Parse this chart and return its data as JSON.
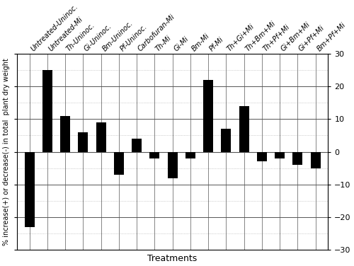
{
  "categories": [
    "Untreated-Uninoc.",
    "Untreated-Mi",
    "Th-Uninoc.",
    "Gi-Uninoc.",
    "Bm-Uninoc.",
    "Pf-Uninoc.",
    "Carbofuran-Mi",
    "Th-Mi",
    "Gi-Mi",
    "Bm-Mi",
    "Pf-Mi",
    "Th+Gi+Mi",
    "Th+Bm+Mi",
    "Th+Pf+Mi",
    "Gi+Bm+Mi",
    "Gi+Pf+Mi",
    "Bm+Pf+Mi"
  ],
  "values": [
    -23,
    25,
    11,
    6,
    9,
    -7,
    4,
    -2,
    -8,
    -2,
    22,
    7,
    14,
    -3,
    -2,
    -4,
    -5
  ],
  "bar_color": "#000000",
  "xlabel": "Treatments",
  "ylabel": "% increase(+) or decrease(-) in total  plant dry weight",
  "ylim": [
    -30,
    30
  ],
  "yticks_major": [
    -30,
    -20,
    -10,
    0,
    10,
    20,
    30
  ],
  "yticks_minor": [
    -25,
    -15,
    -5,
    5,
    15,
    25
  ],
  "background_color": "#ffffff",
  "grid_major_color": "#555555",
  "grid_minor_color": "#aaaaaa",
  "label_fontsize": 7,
  "ylabel_fontsize": 7,
  "xlabel_fontsize": 9
}
